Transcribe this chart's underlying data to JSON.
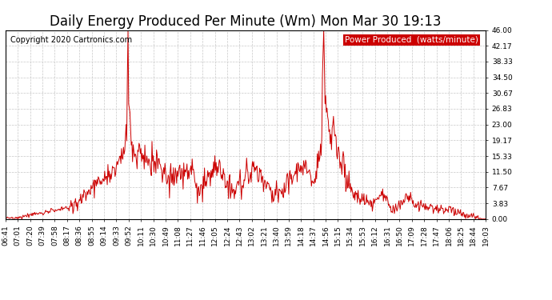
{
  "title": "Daily Energy Produced Per Minute (Wm) Mon Mar 30 19:13",
  "copyright": "Copyright 2020 Cartronics.com",
  "legend_label": "Power Produced  (watts/minute)",
  "legend_bg": "#cc0000",
  "legend_text_color": "#ffffff",
  "line_color": "#cc0000",
  "background_color": "#ffffff",
  "grid_color": "#c8c8c8",
  "ylim": [
    0,
    46.0
  ],
  "yticks": [
    0.0,
    3.83,
    7.67,
    11.5,
    15.33,
    19.17,
    23.0,
    26.83,
    30.67,
    34.5,
    38.33,
    42.17,
    46.0
  ],
  "xtick_labels": [
    "06:41",
    "07:01",
    "07:20",
    "07:39",
    "07:58",
    "08:17",
    "08:36",
    "08:55",
    "09:14",
    "09:33",
    "09:52",
    "10:11",
    "10:30",
    "10:49",
    "11:08",
    "11:27",
    "11:46",
    "12:05",
    "12:24",
    "12:43",
    "13:02",
    "13:21",
    "13:40",
    "13:59",
    "14:18",
    "14:37",
    "14:56",
    "15:15",
    "15:34",
    "15:53",
    "16:12",
    "16:31",
    "16:50",
    "17:09",
    "17:28",
    "17:47",
    "18:06",
    "18:25",
    "18:44",
    "19:03"
  ],
  "title_fontsize": 12,
  "copyright_fontsize": 7,
  "tick_fontsize": 6.5,
  "legend_fontsize": 7.5,
  "n_points": 742
}
